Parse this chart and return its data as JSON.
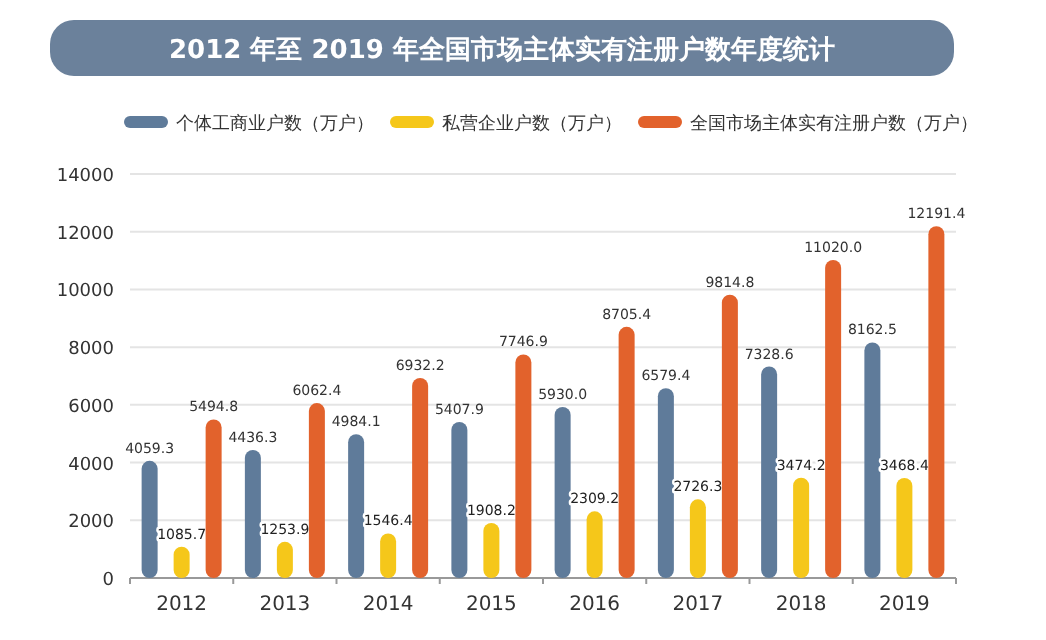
{
  "chart_data": {
    "type": "bar",
    "title": "2012 年至 2019 年全国市场主体实有注册户数年度统计",
    "categories": [
      "2012",
      "2013",
      "2014",
      "2015",
      "2016",
      "2017",
      "2018",
      "2019"
    ],
    "series": [
      {
        "name": "个体工商业户数（万户）",
        "color": "#5f7b9a",
        "values": [
          4059.3,
          4436.3,
          4984.1,
          5407.9,
          5930.0,
          6579.4,
          7328.6,
          8162.5
        ]
      },
      {
        "name": "私营企业户数（万户）",
        "color": "#f5c71a",
        "values": [
          1085.7,
          1253.9,
          1546.4,
          1908.2,
          2309.2,
          2726.3,
          3474.2,
          3468.4
        ]
      },
      {
        "name": "全国市场主体实有注册户数（万户）",
        "color": "#e2622c",
        "values": [
          5494.8,
          6062.4,
          6932.2,
          7746.9,
          8705.4,
          9814.8,
          11020.0,
          12191.4
        ]
      }
    ],
    "ylim": [
      0,
      14000
    ],
    "yticks": [
      0,
      2000,
      4000,
      6000,
      8000,
      10000,
      12000,
      14000
    ],
    "grid": "y",
    "legend": "top",
    "value_labels": [
      [
        "4059.3",
        "4436.3",
        "4984.1",
        "5407.9",
        "5930.0",
        "6579.4",
        "7328.6",
        "8162.5"
      ],
      [
        "1085.7",
        "1253.9",
        "1546.4",
        "1908.2",
        "2309.2",
        "2726.3",
        "3474.2",
        "3468.4"
      ],
      [
        "5494.8",
        "6062.4",
        "6932.2",
        "7746.9",
        "8705.4",
        "9814.8",
        "11020.0",
        "12191.4"
      ]
    ]
  }
}
